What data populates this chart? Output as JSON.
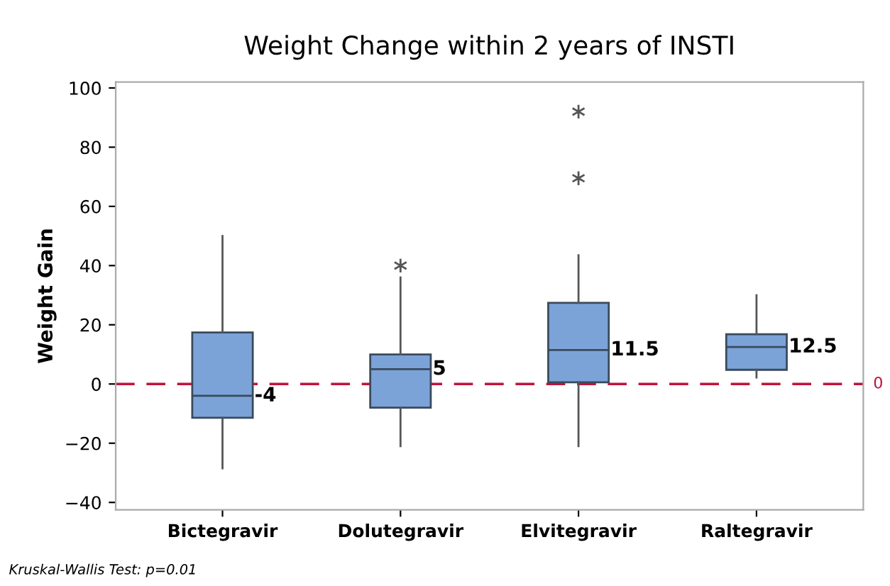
{
  "chart_data": {
    "type": "box",
    "title": "Weight Change within 2 years of INSTI",
    "ylabel": "Weight Gain",
    "categories": [
      "Bictegravir",
      "Dolutegravir",
      "Elvitegravir",
      "Raltegravir"
    ],
    "boxes": [
      {
        "low": -28.5,
        "q1": -11.4,
        "median": -4,
        "q3": 17.4,
        "high": 50
      },
      {
        "low": -21,
        "q1": -8,
        "median": 5,
        "q3": 10,
        "high": 36,
        "outliers": [
          40
        ]
      },
      {
        "low": -21,
        "q1": 0.6,
        "median": 11.5,
        "q3": 27.4,
        "high": 43.5,
        "outliers": [
          69.5,
          92
        ]
      },
      {
        "low": 2.2,
        "q1": 4.8,
        "median": 12.5,
        "q3": 16.8,
        "high": 30
      }
    ],
    "color": "#7ba3d8",
    "value_labels": [
      "-4",
      "5",
      "11.5",
      "12.5"
    ],
    "marker": "star",
    "ylim": [
      -42.5,
      102
    ],
    "yticks": [
      -40,
      -20,
      0,
      20,
      40,
      60,
      80,
      100
    ],
    "grid": false,
    "ref_lines": [
      {
        "axis": "y",
        "value": 0,
        "label": "0",
        "color": "#c0143c",
        "line_style": "dashed"
      }
    ],
    "annotations": [
      "Kruskal-Wallis Test: p=0.01"
    ]
  }
}
